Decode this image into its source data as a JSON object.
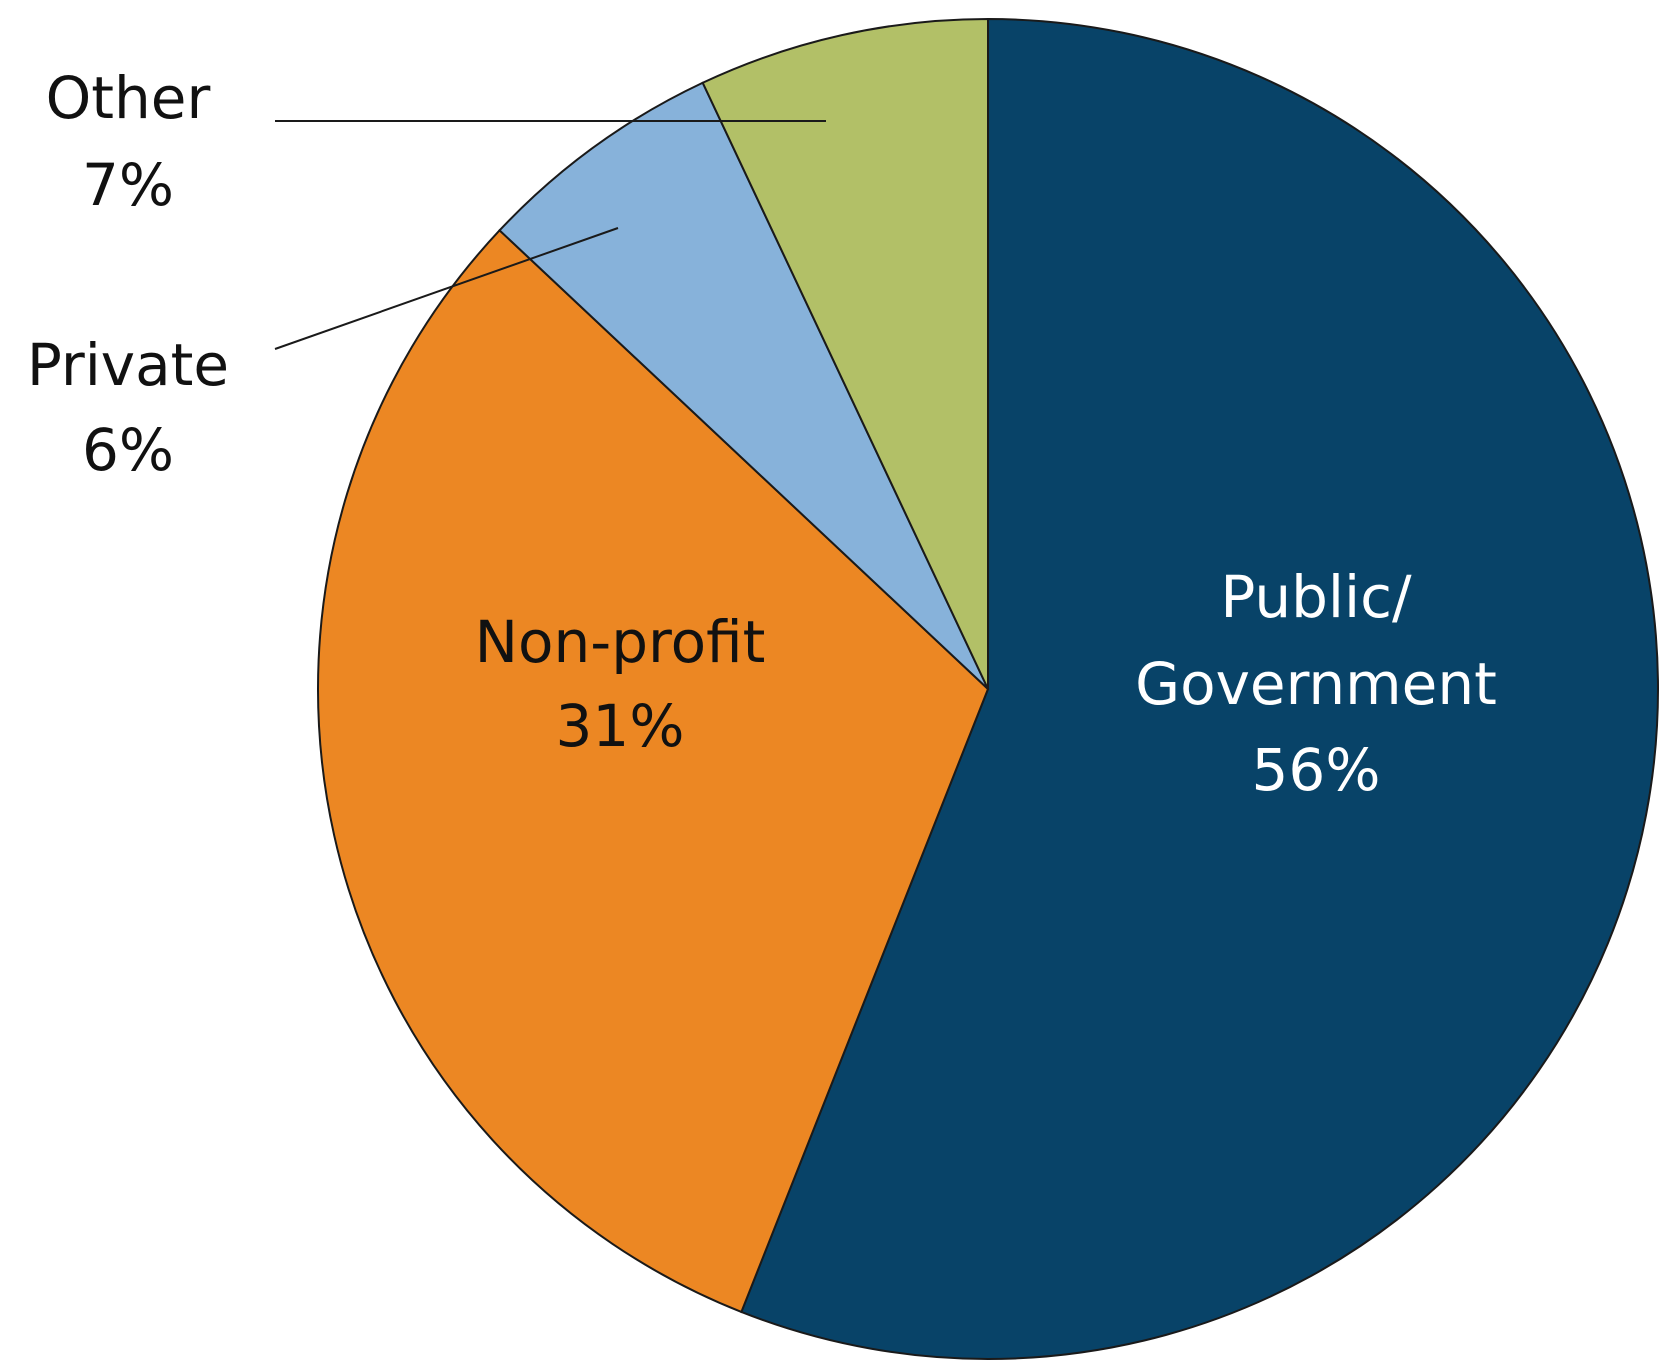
{
  "chart_data": {
    "type": "pie",
    "title": "",
    "slices": [
      {
        "name": "Public/ Government",
        "label_lines": [
          "Public/",
          "Government"
        ],
        "value": 56,
        "value_label": "56%",
        "color": "#084368"
      },
      {
        "name": "Non-profit",
        "label_lines": [
          "Non-profit"
        ],
        "value": 31,
        "value_label": "31%",
        "color": "#EC8723"
      },
      {
        "name": "Private",
        "label_lines": [
          "Private"
        ],
        "value": 6,
        "value_label": "6%",
        "color": "#87B2DA"
      },
      {
        "name": "Other",
        "label_lines": [
          "Other"
        ],
        "value": 7,
        "value_label": "7%",
        "color": "#B2C067"
      }
    ],
    "direction": "clockwise",
    "start_angle_deg": 0,
    "legend": "none",
    "labels": "on-slice and leader lines"
  }
}
